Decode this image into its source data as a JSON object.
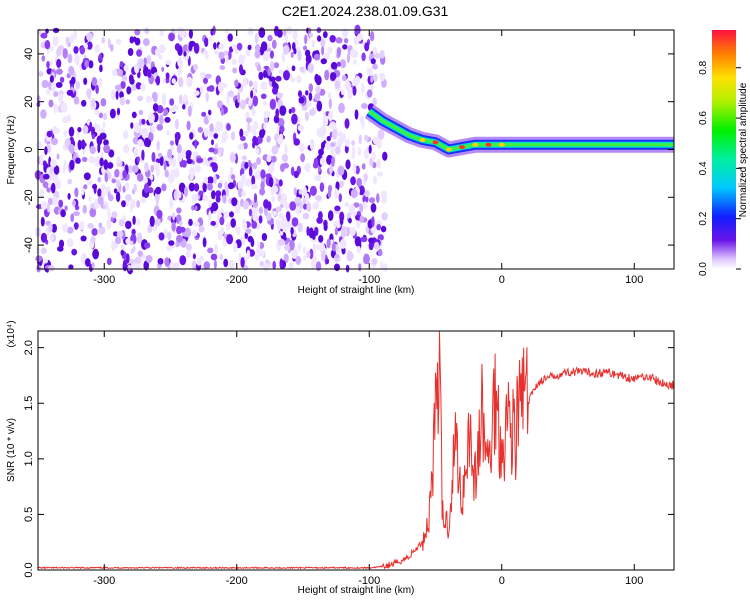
{
  "title": "C2E1.2024.238.01.09.G31",
  "chart_data": [
    {
      "type": "heatmap",
      "xlabel": "Height of straight line (km)",
      "ylabel": "Frequency (Hz)",
      "xlim": [
        -350,
        130
      ],
      "ylim": [
        -50,
        50
      ],
      "xticks": [
        -300,
        -200,
        -100,
        0,
        100
      ],
      "yticks": [
        -40,
        -20,
        0,
        20,
        40
      ],
      "colorbar": {
        "label": "Normalized spectral amplitude",
        "range": [
          0,
          0.95
        ],
        "ticks": [
          0.0,
          0.2,
          0.4,
          0.6,
          0.8
        ]
      },
      "noise_region_x": [
        -350,
        -88
      ],
      "signal_track": {
        "x": [
          -100,
          -90,
          -80,
          -70,
          -60,
          -50,
          -40,
          -30,
          -20,
          -10,
          0,
          20,
          60,
          100,
          130
        ],
        "frequency": [
          16,
          12,
          9,
          6,
          4,
          3,
          0,
          1,
          2,
          2,
          2,
          2,
          2,
          2,
          2
        ]
      }
    },
    {
      "type": "line",
      "xlabel": "Height of straight line (km)",
      "ylabel": "SNR (10 * v/v)",
      "y_multiplier": "(x10⁴)",
      "xlim": [
        -350,
        130
      ],
      "ylim": [
        0,
        2.15
      ],
      "xticks": [
        -300,
        -200,
        -100,
        0,
        100
      ],
      "yticks": [
        "0.0",
        "0.5",
        "1.0",
        "1.5",
        "2.0"
      ],
      "color": "#e8302c",
      "x": [
        -350,
        -300,
        -200,
        -120,
        -100,
        -90,
        -80,
        -70,
        -60,
        -55,
        -50,
        -47,
        -45,
        -40,
        -35,
        -30,
        -25,
        -20,
        -15,
        -10,
        -5,
        0,
        5,
        10,
        15,
        20,
        25,
        30,
        40,
        50,
        60,
        70,
        80,
        90,
        100,
        110,
        120,
        130
      ],
      "y": [
        0.02,
        0.02,
        0.02,
        0.02,
        0.02,
        0.03,
        0.06,
        0.12,
        0.25,
        0.45,
        1.4,
        2.1,
        0.5,
        0.4,
        1.2,
        0.6,
        1.3,
        0.8,
        1.4,
        0.9,
        1.6,
        1.1,
        1.4,
        1.2,
        1.6,
        1.5,
        1.65,
        1.7,
        1.75,
        1.78,
        1.78,
        1.77,
        1.78,
        1.75,
        1.72,
        1.75,
        1.68,
        1.66
      ]
    }
  ]
}
